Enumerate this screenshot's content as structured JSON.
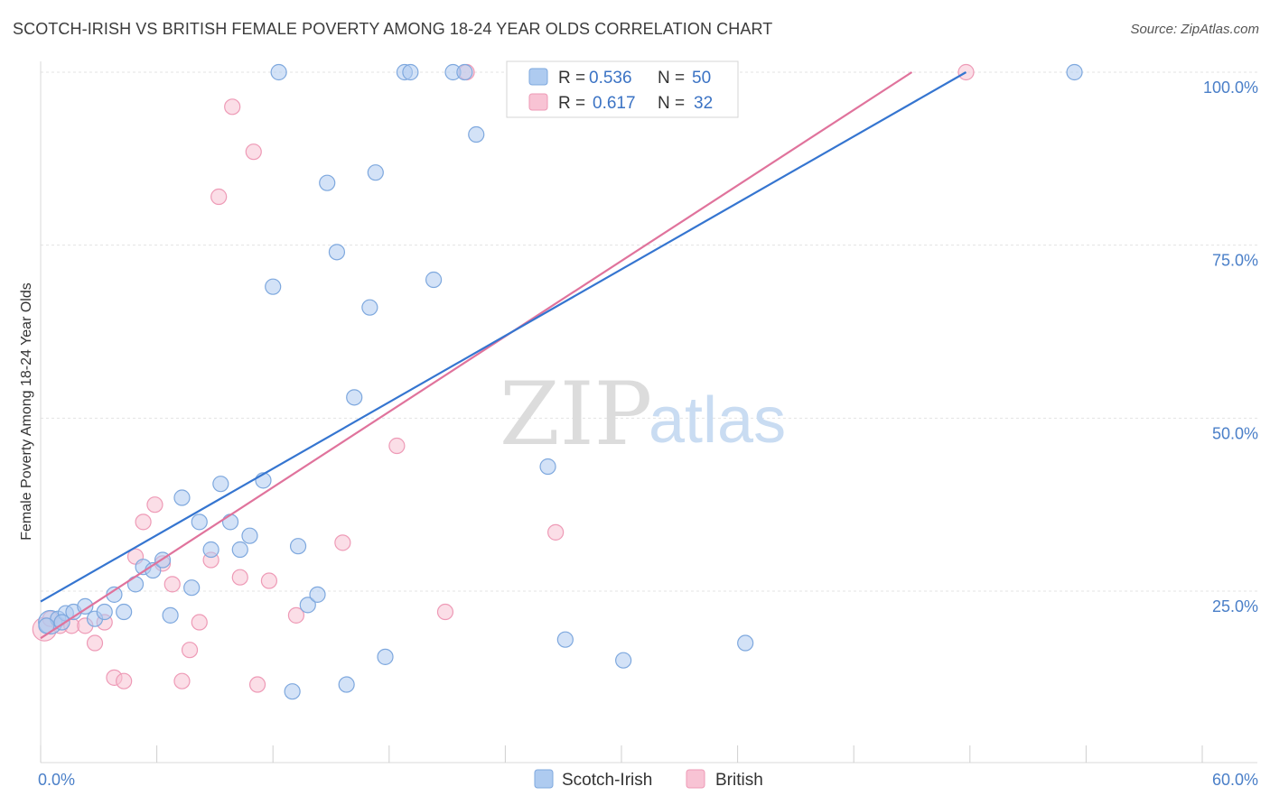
{
  "title": "SCOTCH-IRISH VS BRITISH FEMALE POVERTY AMONG 18-24 YEAR OLDS CORRELATION CHART",
  "source": "Source: ZipAtlas.com",
  "watermark": {
    "part1": "ZIP",
    "part2": "atlas"
  },
  "colors": {
    "blue_fill": "#aecbf0",
    "blue_stroke": "#7ea8de",
    "blue_line": "#3575d0",
    "pink_fill": "#f8c3d4",
    "pink_stroke": "#ee9ab6",
    "pink_line": "#e0739c"
  },
  "legend": {
    "r_label": "R =",
    "n_label": "N =",
    "rows": [
      {
        "r": "0.536",
        "n": "50"
      },
      {
        "r": "0.617",
        "n": "32"
      }
    ]
  },
  "chart_data": {
    "type": "scatter",
    "title": "SCOTCH-IRISH VS BRITISH FEMALE POVERTY AMONG 18-24 YEAR OLDS CORRELATION CHART",
    "xlabel": "",
    "ylabel": "Female Poverty Among 18-24 Year Olds",
    "xlim": [
      0,
      60
    ],
    "ylim": [
      0,
      100
    ],
    "x_tick_labels": [
      "0.0%",
      "60.0%"
    ],
    "y_tick_labels": [
      "25.0%",
      "50.0%",
      "75.0%",
      "100.0%"
    ],
    "y_ticks": [
      25,
      50,
      75,
      100
    ],
    "grid": true,
    "legend_position": "top-center",
    "series": [
      {
        "name": "Scotch-Irish",
        "r": 0.536,
        "n": 50,
        "trend": {
          "x": [
            0,
            47.8
          ],
          "y": [
            23.5,
            100
          ]
        },
        "points": [
          [
            0.5,
            20.5
          ],
          [
            0.9,
            21.0
          ],
          [
            1.3,
            21.8
          ],
          [
            1.7,
            22.0
          ],
          [
            2.3,
            22.8
          ],
          [
            2.8,
            21.0
          ],
          [
            3.3,
            22.0
          ],
          [
            3.8,
            24.5
          ],
          [
            4.3,
            22.0
          ],
          [
            4.9,
            26.0
          ],
          [
            5.3,
            28.5
          ],
          [
            5.8,
            28.0
          ],
          [
            6.3,
            29.5
          ],
          [
            6.7,
            21.5
          ],
          [
            7.3,
            38.5
          ],
          [
            7.8,
            25.5
          ],
          [
            8.2,
            35.0
          ],
          [
            8.8,
            31.0
          ],
          [
            9.3,
            40.5
          ],
          [
            9.8,
            35.0
          ],
          [
            10.3,
            31.0
          ],
          [
            10.8,
            33.0
          ],
          [
            11.5,
            41.0
          ],
          [
            12.0,
            69.0
          ],
          [
            12.3,
            100
          ],
          [
            13.0,
            10.5
          ],
          [
            13.3,
            31.5
          ],
          [
            13.8,
            23.0
          ],
          [
            14.3,
            24.5
          ],
          [
            14.8,
            84.0
          ],
          [
            15.3,
            74.0
          ],
          [
            15.8,
            11.5
          ],
          [
            16.2,
            53.0
          ],
          [
            17.0,
            66.0
          ],
          [
            17.3,
            85.5
          ],
          [
            17.8,
            15.5
          ],
          [
            18.8,
            100
          ],
          [
            19.1,
            100
          ],
          [
            20.3,
            70.0
          ],
          [
            21.3,
            100
          ],
          [
            21.9,
            100
          ],
          [
            22.5,
            91.0
          ],
          [
            25.0,
            100
          ],
          [
            26.2,
            43.0
          ],
          [
            27.1,
            18.0
          ],
          [
            30.1,
            15.0
          ],
          [
            36.4,
            17.5
          ],
          [
            53.4,
            100
          ],
          [
            0.3,
            20.0
          ],
          [
            1.1,
            20.5
          ]
        ]
      },
      {
        "name": "British",
        "r": 0.617,
        "n": 32,
        "trend": {
          "x": [
            0,
            45.0
          ],
          "y": [
            18.2,
            100
          ]
        },
        "points": [
          [
            0.2,
            19.5
          ],
          [
            0.5,
            21.0
          ],
          [
            1.0,
            20.0
          ],
          [
            1.6,
            20.0
          ],
          [
            2.3,
            20.0
          ],
          [
            2.8,
            17.5
          ],
          [
            3.3,
            20.5
          ],
          [
            3.8,
            12.5
          ],
          [
            4.3,
            12.0
          ],
          [
            4.9,
            30.0
          ],
          [
            5.3,
            35.0
          ],
          [
            5.9,
            37.5
          ],
          [
            6.3,
            29.0
          ],
          [
            6.8,
            26.0
          ],
          [
            7.3,
            12.0
          ],
          [
            7.7,
            16.5
          ],
          [
            8.2,
            20.5
          ],
          [
            8.8,
            29.5
          ],
          [
            9.2,
            82.0
          ],
          [
            9.9,
            95.0
          ],
          [
            10.3,
            27.0
          ],
          [
            11.0,
            88.5
          ],
          [
            11.2,
            11.5
          ],
          [
            11.8,
            26.5
          ],
          [
            13.2,
            21.5
          ],
          [
            15.6,
            32.0
          ],
          [
            18.4,
            46.0
          ],
          [
            20.9,
            22.0
          ],
          [
            22.0,
            100
          ],
          [
            26.6,
            33.5
          ],
          [
            28.1,
            100
          ],
          [
            47.8,
            100
          ]
        ]
      }
    ]
  }
}
